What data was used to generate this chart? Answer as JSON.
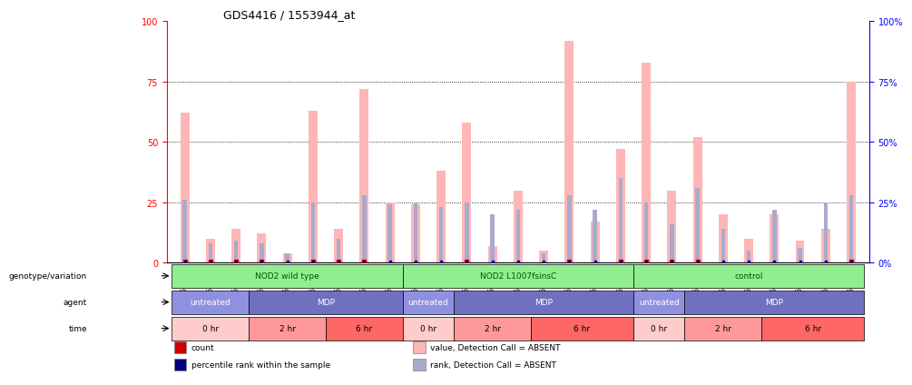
{
  "title": "GDS4416 / 1553944_at",
  "samples": [
    "GSM560855",
    "GSM560856",
    "GSM560857",
    "GSM560864",
    "GSM560865",
    "GSM560866",
    "GSM560873",
    "GSM560874",
    "GSM560875",
    "GSM560858",
    "GSM560859",
    "GSM560860",
    "GSM560867",
    "GSM560868",
    "GSM560869",
    "GSM560876",
    "GSM560877",
    "GSM560878",
    "GSM560861",
    "GSM560862",
    "GSM560863",
    "GSM560870",
    "GSM560871",
    "GSM560872",
    "GSM560879",
    "GSM560880",
    "GSM560881"
  ],
  "pink_bars": [
    62,
    10,
    14,
    12,
    4,
    63,
    14,
    72,
    25,
    24,
    38,
    58,
    7,
    30,
    5,
    92,
    17,
    47,
    83,
    30,
    52,
    20,
    10,
    20,
    9,
    14,
    75
  ],
  "blue_bars": [
    26,
    8,
    9,
    8,
    4,
    25,
    10,
    28,
    24,
    25,
    23,
    25,
    20,
    22,
    4,
    28,
    22,
    35,
    25,
    16,
    31,
    14,
    5,
    22,
    6,
    25,
    28
  ],
  "red_dots": [
    1,
    1,
    1,
    1,
    0,
    1,
    1,
    1,
    0,
    0,
    0,
    1,
    0,
    0,
    0,
    1,
    0,
    1,
    1,
    1,
    1,
    0,
    0,
    0,
    0,
    0,
    1
  ],
  "navy_dots": [
    1,
    1,
    1,
    1,
    1,
    1,
    1,
    1,
    1,
    1,
    1,
    1,
    1,
    1,
    1,
    1,
    1,
    1,
    1,
    1,
    1,
    1,
    1,
    1,
    1,
    1,
    1
  ],
  "genotype_groups": [
    {
      "label": "NOD2 wild type",
      "start": 0,
      "end": 9,
      "color": "#90EE90"
    },
    {
      "label": "NOD2 L1007fsinsC",
      "start": 9,
      "end": 18,
      "color": "#90EE90"
    },
    {
      "label": "control",
      "start": 18,
      "end": 27,
      "color": "#90EE90"
    }
  ],
  "agent_groups": [
    {
      "label": "untreated",
      "start": 0,
      "end": 3,
      "color": "#9090E0"
    },
    {
      "label": "MDP",
      "start": 3,
      "end": 9,
      "color": "#7070C0"
    },
    {
      "label": "untreated",
      "start": 9,
      "end": 11,
      "color": "#9090E0"
    },
    {
      "label": "MDP",
      "start": 11,
      "end": 18,
      "color": "#7070C0"
    },
    {
      "label": "untreated",
      "start": 18,
      "end": 20,
      "color": "#9090E0"
    },
    {
      "label": "MDP",
      "start": 20,
      "end": 27,
      "color": "#7070C0"
    }
  ],
  "time_groups": [
    {
      "label": "0 hr",
      "start": 0,
      "end": 3,
      "color": "#FFCCCC"
    },
    {
      "label": "2 hr",
      "start": 3,
      "end": 6,
      "color": "#FF9999"
    },
    {
      "label": "6 hr",
      "start": 6,
      "end": 9,
      "color": "#FF6666"
    },
    {
      "label": "0 hr",
      "start": 9,
      "end": 11,
      "color": "#FFCCCC"
    },
    {
      "label": "2 hr",
      "start": 11,
      "end": 14,
      "color": "#FF9999"
    },
    {
      "label": "6 hr",
      "start": 14,
      "end": 18,
      "color": "#FF6666"
    },
    {
      "label": "0 hr",
      "start": 18,
      "end": 20,
      "color": "#FFCCCC"
    },
    {
      "label": "2 hr",
      "start": 20,
      "end": 23,
      "color": "#FF9999"
    },
    {
      "label": "6 hr",
      "start": 23,
      "end": 27,
      "color": "#FF6666"
    }
  ],
  "legend": [
    {
      "color": "#CC0000",
      "label": "count"
    },
    {
      "color": "#000080",
      "label": "percentile rank within the sample"
    },
    {
      "color": "#FFB6B6",
      "label": "value, Detection Call = ABSENT"
    },
    {
      "color": "#AAAACC",
      "label": "rank, Detection Call = ABSENT"
    }
  ]
}
